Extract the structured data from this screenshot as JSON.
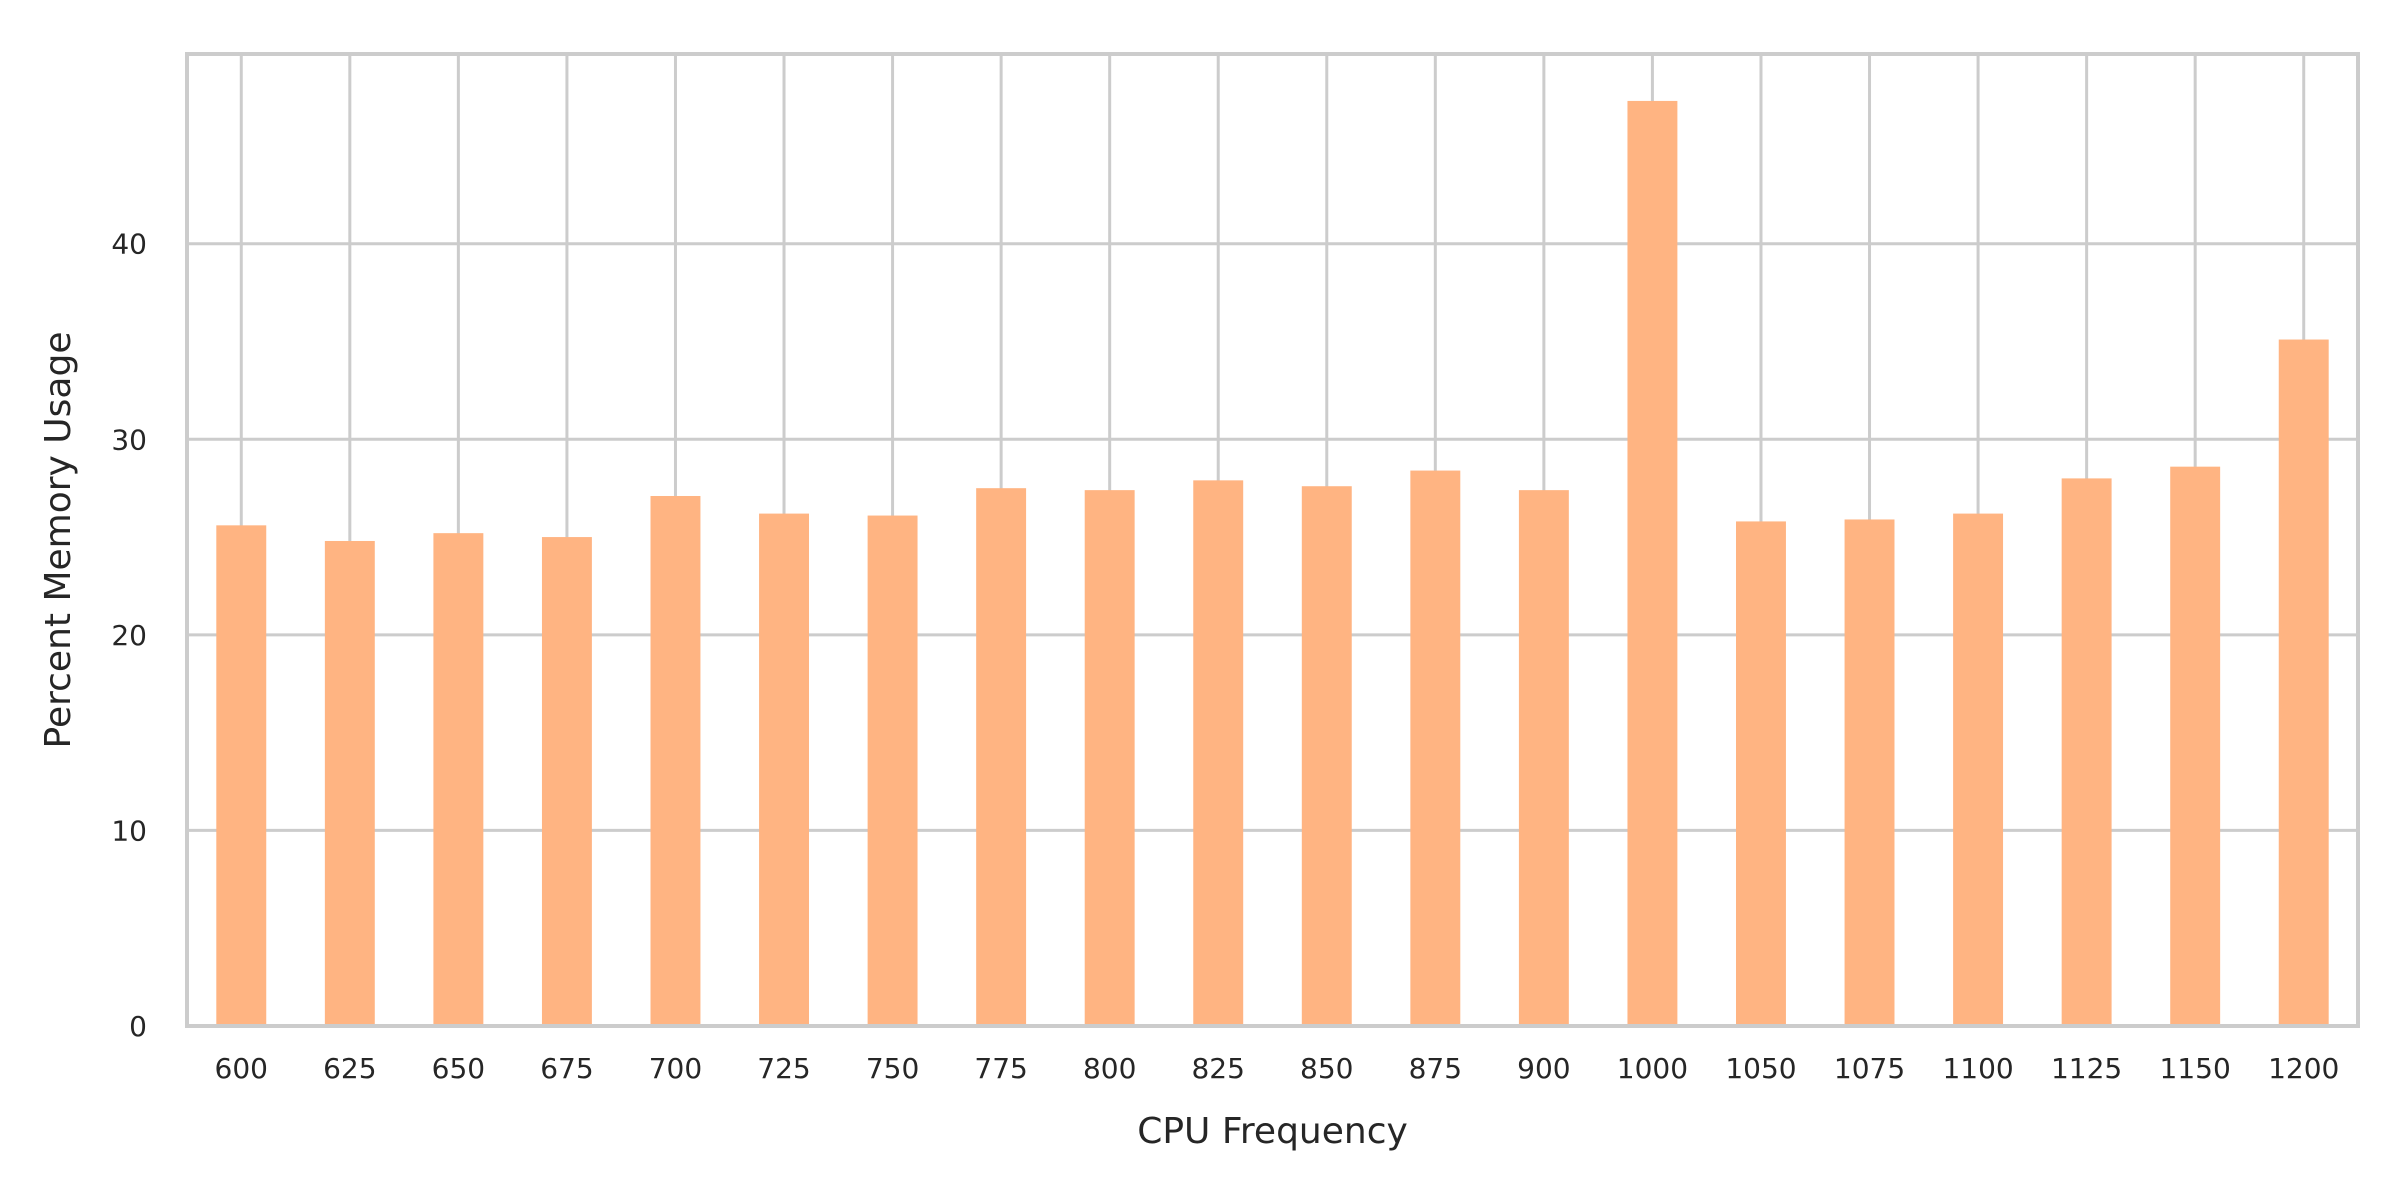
{
  "chart_data": {
    "type": "bar",
    "xlabel": "CPU Frequency",
    "ylabel": "Percent Memory Usage",
    "categories": [
      "600",
      "625",
      "650",
      "675",
      "700",
      "725",
      "750",
      "775",
      "800",
      "825",
      "850",
      "875",
      "900",
      "1000",
      "1050",
      "1075",
      "1100",
      "1125",
      "1150",
      "1200"
    ],
    "values": [
      25.6,
      24.8,
      25.2,
      25.0,
      27.1,
      26.2,
      26.1,
      27.5,
      27.4,
      27.9,
      27.6,
      28.4,
      27.4,
      47.3,
      25.8,
      25.9,
      26.2,
      28.0,
      28.6,
      35.1
    ],
    "ylim": [
      0,
      49.7
    ],
    "yticks": [
      0,
      10,
      20,
      30,
      40
    ],
    "grid": true,
    "bar_color": "#ffb482",
    "grid_color": "#cccccc",
    "axis_color": "#cccccc"
  }
}
